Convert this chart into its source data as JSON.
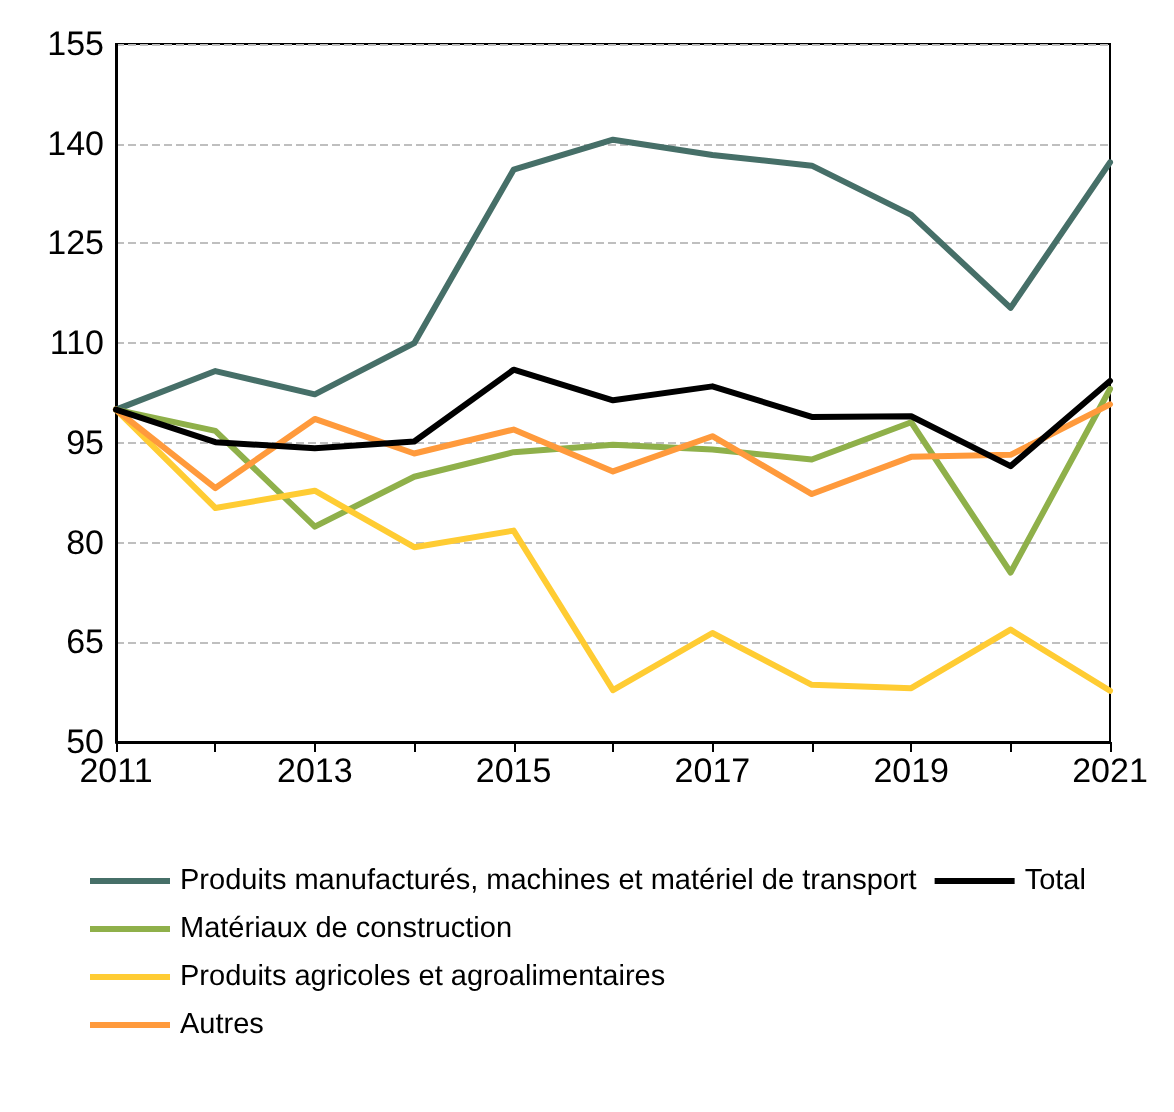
{
  "chart_data": {
    "type": "line",
    "x": [
      2011,
      2012,
      2013,
      2014,
      2015,
      2016,
      2017,
      2018,
      2019,
      2020,
      2021
    ],
    "series": [
      {
        "name": "Produits manufacturés, machines et matériel de transport",
        "color": "#466f68",
        "values": [
          100,
          105.8,
          102.3,
          110,
          136.1,
          140.6,
          138.3,
          136.7,
          129.3,
          115.3,
          137.2
        ]
      },
      {
        "name": "Matériaux de construction",
        "color": "#8fb04a",
        "values": [
          100,
          96.8,
          82.4,
          89.9,
          93.6,
          94.7,
          94.0,
          92.5,
          98.1,
          75.5,
          103.1
        ]
      },
      {
        "name": "Produits agricoles et agroalimentaires",
        "color": "#ffcc33",
        "values": [
          100,
          85.2,
          87.8,
          79.3,
          81.8,
          57.8,
          66.4,
          58.6,
          58.1,
          66.9,
          57.7
        ]
      },
      {
        "name": "Autres",
        "color": "#ff9a3c",
        "values": [
          100,
          88.2,
          98.6,
          93.4,
          97.0,
          90.7,
          96.0,
          87.3,
          92.9,
          93.2,
          100.8
        ]
      },
      {
        "name": "Total",
        "color": "#000000",
        "values": [
          100,
          95.1,
          94.2,
          95.2,
          106.0,
          101.4,
          103.5,
          98.9,
          99.0,
          91.5,
          104.3
        ]
      }
    ],
    "xlim": [
      2011,
      2021
    ],
    "xticks": [
      2011,
      {
        "value": 2012,
        "label": null
      },
      2013,
      {
        "value": 2014,
        "label": null
      },
      2015,
      {
        "value": 2016,
        "label": null
      },
      2017,
      {
        "value": 2018,
        "label": null
      },
      2019,
      {
        "value": 2020,
        "label": null
      },
      2021
    ],
    "ylim": [
      50,
      155
    ],
    "yticks": [
      50,
      65,
      80,
      95,
      110,
      125,
      140,
      155
    ],
    "grid": "y",
    "legend": "bottom",
    "marker": "none",
    "line_style": "solid"
  }
}
